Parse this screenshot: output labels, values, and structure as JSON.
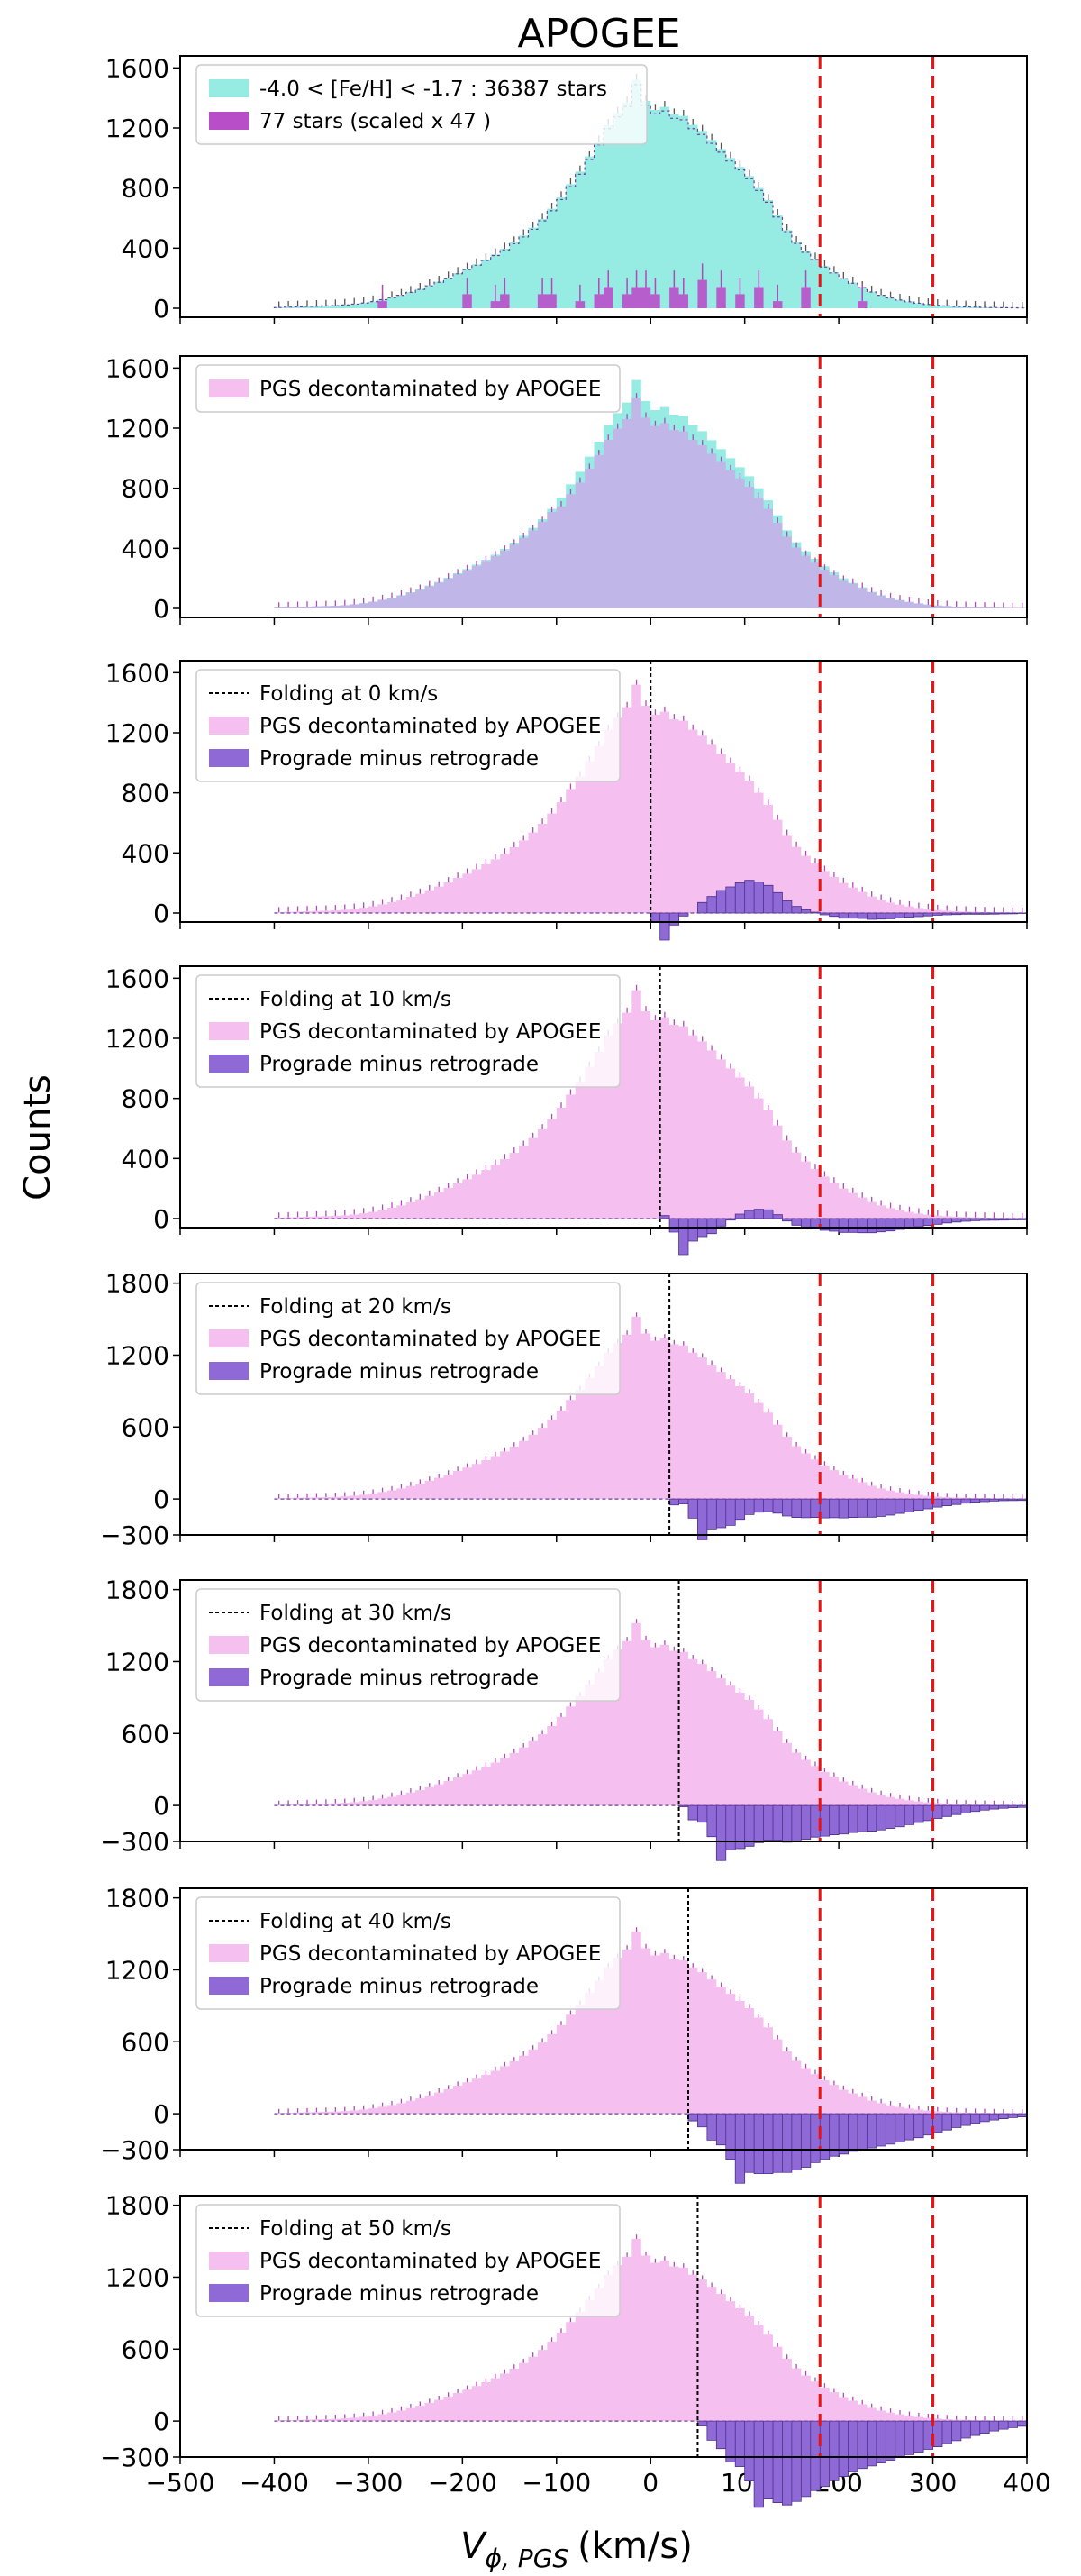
{
  "chart_data": {
    "type": "histogram",
    "title": "APOGEE",
    "ylabel": "Counts",
    "xlabel_main": "V",
    "xlabel_sub": "ϕ, PGS",
    "xlabel_unit": "(km/s)",
    "xlim": [
      -500,
      400
    ],
    "xticks": [
      -500,
      -400,
      -300,
      -200,
      -100,
      0,
      100,
      200,
      300,
      400
    ],
    "reference_lines_x": [
      180,
      300
    ],
    "colors": {
      "apogee": "#96ebe3",
      "scaled": "#b94fc8",
      "pgs_over_apogee": "#c1b6e8",
      "pgs": "#f5bfef",
      "prograde": "#8f6ad7",
      "errorbar": "#b04ab8",
      "refline": "#ee1111"
    },
    "bins": {
      "start": -400,
      "width": 10,
      "count": 80
    },
    "pgs_counts": [
      5,
      8,
      10,
      12,
      14,
      16,
      18,
      22,
      28,
      35,
      45,
      58,
      72,
      88,
      108,
      128,
      152,
      176,
      204,
      234,
      262,
      292,
      324,
      358,
      396,
      438,
      484,
      536,
      594,
      662,
      738,
      826,
      910,
      1010,
      1110,
      1220,
      1300,
      1370,
      1520,
      1380,
      1320,
      1340,
      1290,
      1280,
      1220,
      1180,
      1120,
      1060,
      1000,
      940,
      880,
      800,
      720,
      620,
      520,
      440,
      380,
      330,
      280,
      240,
      200,
      170,
      140,
      110,
      88,
      70,
      56,
      44,
      34,
      26,
      20,
      16,
      12,
      10,
      8,
      6,
      5,
      4,
      3,
      2
    ],
    "panels": [
      {
        "yticks": [
          0,
          400,
          800,
          1200,
          1600
        ],
        "ylim": [
          -60,
          1680
        ],
        "legend": [
          "-4.0 < [Fe/H] < -1.7 : 36387 stars",
          "77 stars (scaled x 47 )"
        ],
        "scaled_counts": [
          0,
          0,
          0,
          0,
          0,
          0,
          0,
          0,
          0,
          0,
          0,
          47,
          0,
          0,
          0,
          0,
          0,
          0,
          0,
          0,
          94,
          0,
          0,
          47,
          94,
          0,
          0,
          0,
          94,
          94,
          0,
          0,
          47,
          0,
          94,
          141,
          0,
          94,
          141,
          141,
          94,
          0,
          141,
          94,
          0,
          188,
          0,
          141,
          0,
          94,
          0,
          141,
          0,
          47,
          0,
          0,
          141,
          0,
          0,
          0,
          0,
          0,
          47,
          0,
          0,
          0,
          0,
          0,
          0,
          0,
          0,
          0,
          0,
          0,
          0,
          0,
          0,
          0,
          0,
          0
        ]
      },
      {
        "yticks": [
          0,
          400,
          800,
          1200,
          1600
        ],
        "ylim": [
          -60,
          1680
        ],
        "legend": [
          "PGS decontaminated by APOGEE"
        ]
      },
      {
        "yticks": [
          0,
          400,
          800,
          1200,
          1600
        ],
        "ylim": [
          -60,
          1680
        ],
        "fold": 0,
        "legend": [
          "Folding at 0 km/s",
          "PGS decontaminated by APOGEE",
          "Prograde minus retrograde"
        ]
      },
      {
        "yticks": [
          0,
          400,
          800,
          1200,
          1600
        ],
        "ylim": [
          -60,
          1680
        ],
        "fold": 10,
        "legend": [
          "Folding at 10 km/s",
          "PGS decontaminated by APOGEE",
          "Prograde minus retrograde"
        ]
      },
      {
        "yticks": [
          -300,
          0,
          600,
          1200,
          1800
        ],
        "ylim": [
          -300,
          1880
        ],
        "fold": 20,
        "legend": [
          "Folding at 20 km/s",
          "PGS decontaminated by APOGEE",
          "Prograde minus retrograde"
        ]
      },
      {
        "yticks": [
          -300,
          0,
          600,
          1200,
          1800
        ],
        "ylim": [
          -300,
          1880
        ],
        "fold": 30,
        "legend": [
          "Folding at 30 km/s",
          "PGS decontaminated by APOGEE",
          "Prograde minus retrograde"
        ]
      },
      {
        "yticks": [
          -300,
          0,
          600,
          1200,
          1800
        ],
        "ylim": [
          -300,
          1880
        ],
        "fold": 40,
        "legend": [
          "Folding at 40 km/s",
          "PGS decontaminated by APOGEE",
          "Prograde minus retrograde"
        ]
      },
      {
        "yticks": [
          -300,
          0,
          600,
          1200,
          1800
        ],
        "ylim": [
          -300,
          1880
        ],
        "fold": 50,
        "legend": [
          "Folding at 50 km/s",
          "PGS decontaminated by APOGEE",
          "Prograde minus retrograde"
        ]
      }
    ]
  }
}
